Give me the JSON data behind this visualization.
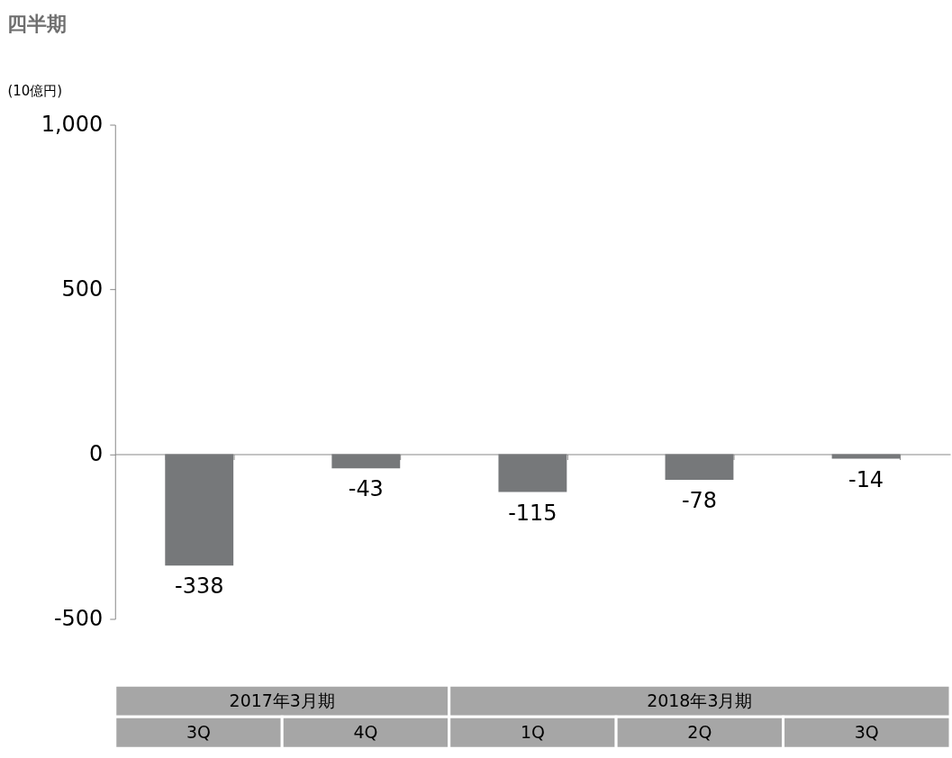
{
  "chart_data": {
    "type": "bar",
    "title": "四半期",
    "ylabel": "(10億円)",
    "categories": [
      "3Q",
      "4Q",
      "1Q",
      "2Q",
      "3Q"
    ],
    "values": [
      -338,
      -43,
      -115,
      -78,
      -14
    ],
    "color": "#76787a",
    "ylim": [
      -500,
      1000
    ],
    "yticks": [
      -500,
      0,
      500,
      {
        "value": 1000,
        "label": "1,000"
      }
    ],
    "data_labels": true,
    "annotations": [
      "2017年3月期",
      "2018年3月期"
    ]
  }
}
